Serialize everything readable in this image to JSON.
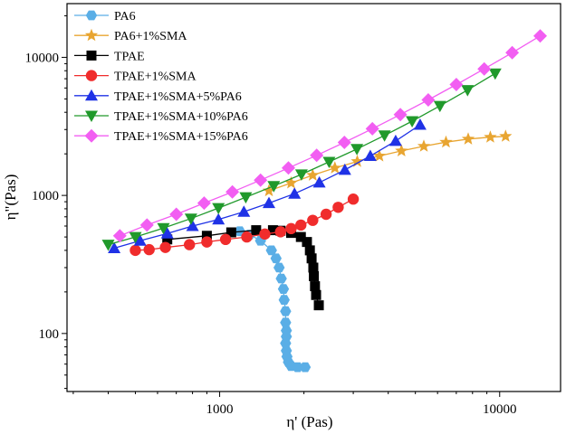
{
  "chart_data": {
    "type": "line",
    "x_scale": "log",
    "y_scale": "log",
    "xlabel": "η' (Pas)",
    "ylabel": "η\"(Pas)",
    "xlim": [
      285,
      16500
    ],
    "ylim": [
      38,
      24500
    ],
    "x_ticks": [
      {
        "value": 1000,
        "label": "1000"
      },
      {
        "value": 10000,
        "label": "10000"
      }
    ],
    "y_ticks": [
      {
        "value": 100,
        "label": "100"
      },
      {
        "value": 1000,
        "label": "1000"
      },
      {
        "value": 10000,
        "label": "10000"
      }
    ],
    "grid": false,
    "legend_position": "top-left",
    "series": [
      {
        "name": "PA6",
        "color": "#5aaee6",
        "marker": "hexagon",
        "x": [
          1180,
          1280,
          1400,
          1530,
          1590,
          1630,
          1660,
          1690,
          1700,
          1720,
          1720,
          1730,
          1730,
          1720,
          1730,
          1740,
          1760,
          1800,
          1900,
          2020
        ],
        "y": [
          550,
          520,
          470,
          400,
          350,
          300,
          250,
          210,
          175,
          145,
          120,
          105,
          95,
          85,
          75,
          68,
          62,
          58,
          57,
          57
        ]
      },
      {
        "name": "PA6+1%SMA",
        "color": "#e8a531",
        "marker": "star",
        "x": [
          1500,
          1800,
          2150,
          2580,
          3100,
          3720,
          4460,
          5360,
          6430,
          7720,
          9260,
          10500
        ],
        "y": [
          1080,
          1230,
          1400,
          1580,
          1760,
          1930,
          2100,
          2270,
          2430,
          2560,
          2640,
          2680
        ]
      },
      {
        "name": "TPAE",
        "color": "#000000",
        "marker": "square",
        "x": [
          650,
          900,
          1100,
          1350,
          1550,
          1650,
          1800,
          1950,
          2050,
          2100,
          2130,
          2160,
          2170,
          2190,
          2210,
          2260
        ],
        "y": [
          480,
          510,
          540,
          560,
          560,
          555,
          535,
          500,
          460,
          400,
          350,
          300,
          260,
          220,
          190,
          160
        ]
      },
      {
        "name": "TPAE+1%SMA",
        "color": "#f02c2c",
        "marker": "circle",
        "x": [
          500,
          560,
          640,
          780,
          900,
          1050,
          1250,
          1450,
          1650,
          1800,
          1950,
          2150,
          2400,
          2650,
          3000
        ],
        "y": [
          400,
          405,
          420,
          440,
          460,
          480,
          500,
          525,
          545,
          575,
          610,
          660,
          730,
          820,
          940
        ]
      },
      {
        "name": "TPAE+1%SMA+5%PA6",
        "color": "#1f32e6",
        "marker": "triangle-up",
        "x": [
          420,
          520,
          650,
          800,
          990,
          1220,
          1500,
          1850,
          2270,
          2800,
          3450,
          4250,
          5200
        ],
        "y": [
          415,
          470,
          530,
          600,
          670,
          760,
          880,
          1030,
          1240,
          1530,
          1930,
          2480,
          3250
        ]
      },
      {
        "name": "TPAE+1%SMA+10%PA6",
        "color": "#20992b",
        "marker": "triangle-down",
        "x": [
          400,
          500,
          630,
          790,
          990,
          1240,
          1560,
          1960,
          2460,
          3090,
          3880,
          4870,
          6120,
          7680,
          9640
        ],
        "y": [
          440,
          500,
          580,
          680,
          810,
          970,
          1170,
          1420,
          1750,
          2170,
          2720,
          3450,
          4450,
          5800,
          7650
        ]
      },
      {
        "name": "TPAE+1%SMA+15%PA6",
        "color": "#f25ef2",
        "marker": "diamond",
        "x": [
          440,
          550,
          700,
          880,
          1110,
          1400,
          1760,
          2220,
          2790,
          3510,
          4420,
          5560,
          7000,
          8810,
          11090,
          13950
        ],
        "y": [
          510,
          610,
          730,
          880,
          1060,
          1290,
          1580,
          1950,
          2420,
          3040,
          3850,
          4920,
          6350,
          8250,
          10800,
          14300
        ]
      }
    ]
  }
}
